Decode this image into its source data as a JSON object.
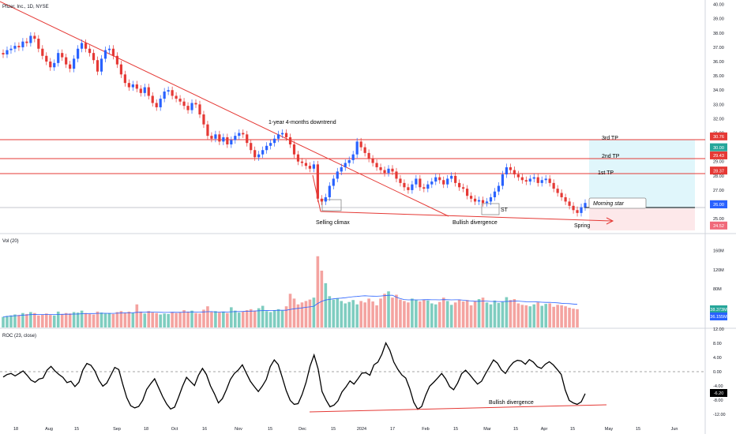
{
  "header": {
    "symbol_label": "Pfizer, Inc., 1D, NYSE"
  },
  "colors": {
    "up": "#2962ff",
    "down": "#e53935",
    "vol_up": "#7fcdc0",
    "vol_down": "#f4a3a0",
    "line": "#e53935",
    "roc_line": "#000000",
    "ma_line": "#2962ff",
    "target_fill": "#e0f6fb",
    "stop_fill": "#fde8ea"
  },
  "price_axis": {
    "ticks": [
      "40.00",
      "39.00",
      "38.00",
      "37.00",
      "36.00",
      "35.00",
      "34.00",
      "33.00",
      "32.00",
      "31.00",
      "30.00",
      "29.00",
      "28.00",
      "27.00",
      "26.00",
      "25.00"
    ]
  },
  "price_badges": [
    {
      "label": "30.76",
      "value": 30.76,
      "color": "#e53935"
    },
    {
      "label": "30.00",
      "value": 30.0,
      "color": "#26a69a"
    },
    {
      "label": "29.43",
      "value": 29.43,
      "color": "#e53935"
    },
    {
      "label": "28.37",
      "value": 28.37,
      "color": "#e53935"
    },
    {
      "label": "26.01",
      "value": 26.01,
      "color": "#1e3a8a"
    },
    {
      "label": "26.00",
      "value": 26.0,
      "color": "#2962ff"
    },
    {
      "label": "24.52",
      "value": 24.52,
      "color": "#f06a7a"
    }
  ],
  "annotations": {
    "downtrend": "1-year 4-months downtrend",
    "tp3": "3rd TP",
    "tp2": "2nd TP",
    "tp1": "1st TP",
    "morning_star": "Morning star",
    "selling_climax": "Selling climax",
    "bullish_div_price": "Bullish divergence",
    "st": "ST",
    "spring": "Spring",
    "bullish_div_roc": "Bullish divergence"
  },
  "volume_pane": {
    "label": "Vol (20)",
    "ticks": [
      "160M",
      "120M",
      "80M",
      "40M"
    ],
    "badges": [
      {
        "label": "38.373M",
        "color": "#26a69a"
      },
      {
        "label": "36.155M",
        "color": "#2962ff"
      }
    ]
  },
  "roc_pane": {
    "label": "ROC (23, close)",
    "ticks": [
      "12.00",
      "8.00",
      "4.00",
      "0.00",
      "-4.00",
      "-8.00",
      "-12.00"
    ],
    "badge": "-6.20"
  },
  "x_axis": {
    "ticks": [
      "18",
      "Aug",
      "15",
      "Sep",
      "18",
      "Oct",
      "16",
      "Nov",
      "15",
      "Dec",
      "15",
      "2024",
      "17",
      "Feb",
      "15",
      "Mar",
      "15",
      "Apr",
      "15",
      "May",
      "15",
      "Jun"
    ]
  },
  "chart_data": {
    "type": "candlestick",
    "ylim": [
      24.4,
      40.2
    ],
    "levels": [
      {
        "name": "3rd TP",
        "value": 30.76
      },
      {
        "name": "2nd TP",
        "value": 29.43
      },
      {
        "name": "1st TP",
        "value": 28.37
      },
      {
        "name": "Morning star",
        "value": 26.01
      }
    ],
    "price_close": [
      36.5,
      36.8,
      36.9,
      37.1,
      37.0,
      37.4,
      37.3,
      37.8,
      37.6,
      36.9,
      36.4,
      36.0,
      35.6,
      35.9,
      36.6,
      36.3,
      35.8,
      35.5,
      36.2,
      36.9,
      37.3,
      36.9,
      36.6,
      36.1,
      35.3,
      36.2,
      36.8,
      36.9,
      36.4,
      35.8,
      35.1,
      34.5,
      34.2,
      34.4,
      34.1,
      33.8,
      34.2,
      33.6,
      33.1,
      32.8,
      33.4,
      33.9,
      34.0,
      33.6,
      33.4,
      33.2,
      32.9,
      32.6,
      33.1,
      33.0,
      32.3,
      31.6,
      30.8,
      30.6,
      30.9,
      30.4,
      30.7,
      30.2,
      30.5,
      30.8,
      31.0,
      30.9,
      30.3,
      29.8,
      29.3,
      29.5,
      29.8,
      30.1,
      30.3,
      30.6,
      30.9,
      31.0,
      30.7,
      30.2,
      29.5,
      29.0,
      28.9,
      28.7,
      28.5,
      28.8,
      26.4,
      26.2,
      26.5,
      27.3,
      27.8,
      28.3,
      28.6,
      28.9,
      29.1,
      29.5,
      30.4,
      30.0,
      29.6,
      29.2,
      28.9,
      28.6,
      28.4,
      28.2,
      28.5,
      28.3,
      27.8,
      27.5,
      27.2,
      27.0,
      27.4,
      27.8,
      27.2,
      27.1,
      27.4,
      27.6,
      27.9,
      27.7,
      27.4,
      27.8,
      28.0,
      27.5,
      27.2,
      27.1,
      26.6,
      26.4,
      26.2,
      26.3,
      26.1,
      26.2,
      26.5,
      26.9,
      27.3,
      28.1,
      28.6,
      28.4,
      28.1,
      27.9,
      27.7,
      27.6,
      27.8,
      27.9,
      27.5,
      27.7,
      27.8,
      27.5,
      27.1,
      26.8,
      26.5,
      26.2,
      25.9,
      25.6,
      25.4,
      25.8,
      26.1
    ],
    "volume": [
      22,
      24,
      25,
      27,
      26,
      30,
      28,
      32,
      30,
      25,
      27,
      29,
      26,
      25,
      33,
      28,
      30,
      29,
      32,
      31,
      35,
      30,
      28,
      27,
      33,
      31,
      29,
      30,
      28,
      32,
      34,
      31,
      33,
      30,
      48,
      33,
      29,
      34,
      31,
      30,
      27,
      29,
      28,
      32,
      30,
      31,
      36,
      33,
      35,
      30,
      29,
      37,
      44,
      32,
      34,
      31,
      33,
      30,
      42,
      35,
      31,
      33,
      36,
      38,
      35,
      40,
      45,
      34,
      32,
      36,
      38,
      35,
      44,
      70,
      60,
      48,
      52,
      55,
      58,
      62,
      148,
      118,
      92,
      65,
      58,
      61,
      55,
      50,
      53,
      57,
      48,
      55,
      52,
      60,
      54,
      46,
      60,
      70,
      75,
      62,
      68,
      58,
      55,
      52,
      60,
      57,
      54,
      58,
      56,
      50,
      48,
      53,
      62,
      55,
      47,
      52,
      58,
      54,
      57,
      46,
      55,
      59,
      62,
      52,
      48,
      56,
      51,
      53,
      63,
      57,
      59,
      50,
      47,
      46,
      44,
      48,
      52,
      45,
      49,
      50,
      43,
      47,
      46,
      44,
      41,
      39,
      38
    ],
    "roc": [
      -1.5,
      -0.8,
      -0.5,
      -1.2,
      -0.5,
      0.2,
      -1.0,
      -2.4,
      -3.0,
      -2.1,
      -1.8,
      0.4,
      1.5,
      0.2,
      -0.8,
      -1.6,
      -3.1,
      -2.7,
      -4.2,
      -3.0,
      0.5,
      2.3,
      1.8,
      0.2,
      -2.4,
      -4.1,
      -3.2,
      -1.0,
      1.2,
      0.6,
      -3.5,
      -7.3,
      -9.6,
      -10.2,
      -9.8,
      -8.1,
      -5.0,
      -3.4,
      -2.0,
      -4.5,
      -7.0,
      -9.1,
      -10.5,
      -10.0,
      -7.2,
      -4.1,
      -1.6,
      -2.8,
      -3.9,
      -1.0,
      0.9,
      -0.8,
      -4.0,
      -6.2,
      -8.8,
      -7.6,
      -5.1,
      -2.2,
      -0.5,
      0.5,
      1.9,
      -0.4,
      -2.7,
      -4.2,
      -5.6,
      -4.1,
      -2.2,
      1.4,
      3.3,
      2.0,
      -1.6,
      -5.3,
      -8.1,
      -9.2,
      -9.0,
      -6.4,
      -3.0,
      1.6,
      4.7,
      0.8,
      -5.6,
      -8.0,
      -9.9,
      -9.4,
      -8.2,
      -5.7,
      -4.3,
      -2.6,
      -3.5,
      -2.0,
      -0.4,
      -0.3,
      -1.0,
      1.9,
      2.7,
      4.9,
      8.1,
      6.0,
      2.7,
      0.7,
      -0.9,
      -1.8,
      -4.8,
      -8.6,
      -10.6,
      -9.8,
      -6.6,
      -4.1,
      -3.0,
      -1.8,
      -0.5,
      -2.0,
      -4.2,
      -5.1,
      -3.2,
      -0.6,
      0.4,
      -0.8,
      -2.2,
      -3.5,
      -2.7,
      -0.6,
      1.3,
      3.3,
      2.4,
      0.5,
      -0.5,
      1.3,
      2.6,
      3.2,
      3.0,
      2.1,
      3.4,
      2.7,
      1.4,
      0.9,
      2.1,
      2.8,
      1.9,
      0.6,
      -0.8,
      -5.2,
      -8.1,
      -8.8,
      -9.2,
      -8.5,
      -6.2
    ]
  }
}
